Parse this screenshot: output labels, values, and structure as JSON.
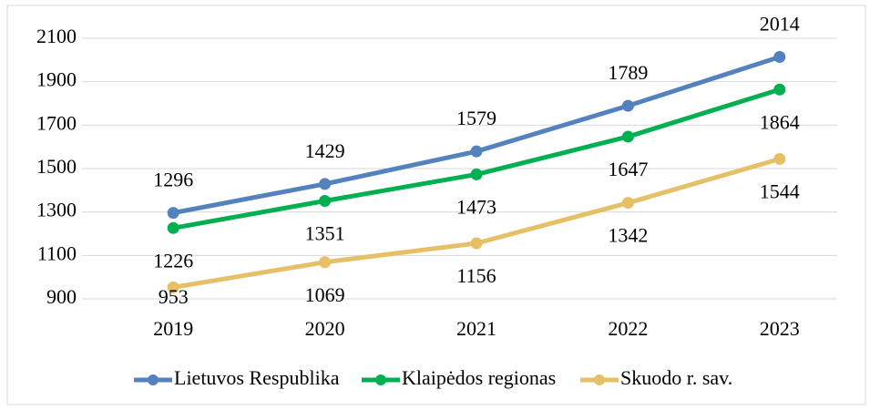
{
  "chart_data": {
    "type": "line",
    "categories": [
      "2019",
      "2020",
      "2021",
      "2022",
      "2023"
    ],
    "series": [
      {
        "name": "Lietuvos Respublika",
        "color": "#5482bf",
        "values": [
          1296,
          1429,
          1579,
          1789,
          2014
        ]
      },
      {
        "name": "Klaipėdos regionas",
        "color": "#00b050",
        "values": [
          1226,
          1351,
          1473,
          1647,
          1864
        ]
      },
      {
        "name": "Skuodo r. sav.",
        "color": "#e6c067",
        "values": [
          953,
          1069,
          1156,
          1342,
          1544
        ]
      }
    ],
    "ylim": [
      900,
      2100
    ],
    "yticks": [
      900,
      1100,
      1300,
      1500,
      1700,
      1900,
      2100
    ],
    "grid": true,
    "legend": "bottom"
  }
}
